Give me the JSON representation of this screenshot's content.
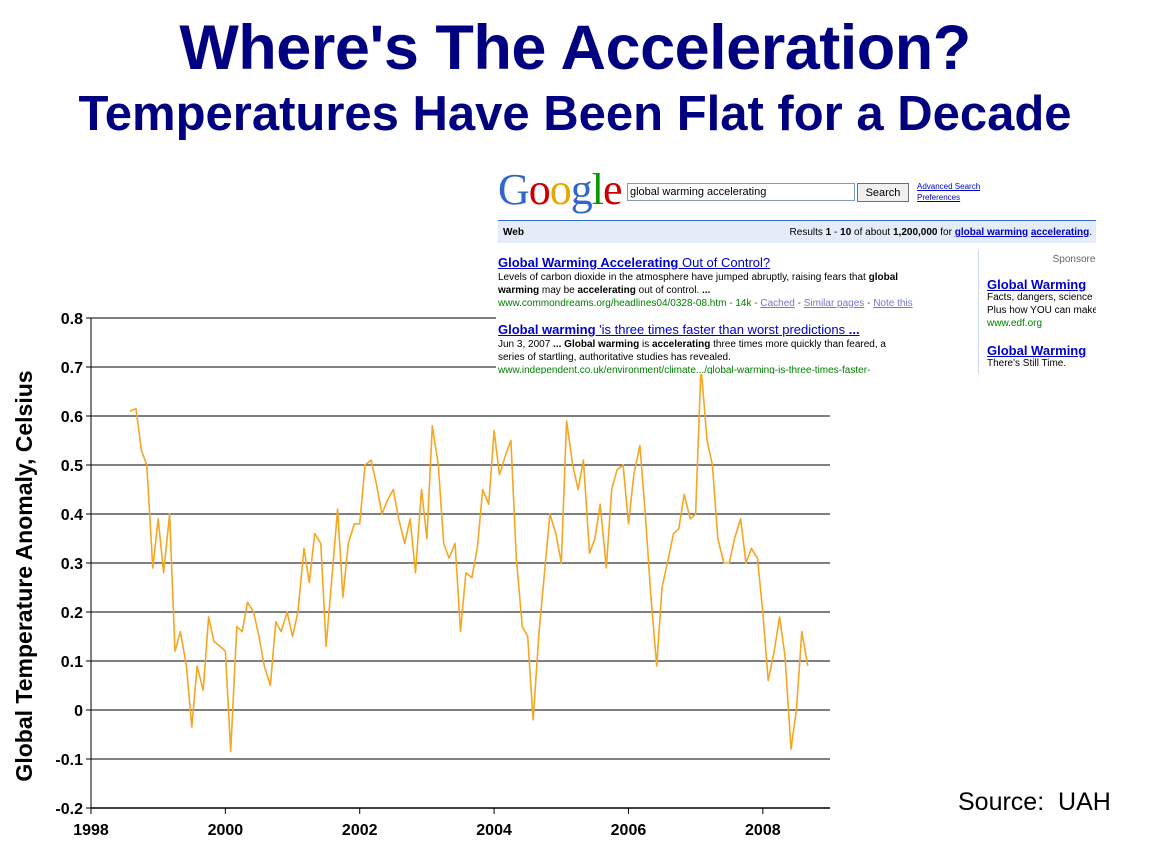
{
  "title": "Where's The Acceleration?",
  "subtitle": "Temperatures Have Been Flat for a Decade",
  "source_label": "Source:  UAH",
  "chart_data": {
    "type": "line",
    "title": "Where's The Acceleration?",
    "subtitle": "Temperatures Have Been Flat for a Decade",
    "ylabel": "Global Temperature Anomaly, Celsius",
    "xlabel": "",
    "xlim": [
      1998,
      2009
    ],
    "ylim": [
      -0.2,
      0.8
    ],
    "x_ticks": [
      "1998",
      "2000",
      "2002",
      "2004",
      "2006",
      "2008"
    ],
    "x_tick_values": [
      1998,
      2000,
      2002,
      2004,
      2006,
      2008
    ],
    "y_ticks": [
      "0.8",
      "0.7",
      "0.6",
      "0.5",
      "0.4",
      "0.3",
      "0.2",
      "0.1",
      "0",
      "-0.1",
      "-0.2"
    ],
    "y_tick_values": [
      0.8,
      0.7,
      0.6,
      0.5,
      0.4,
      0.3,
      0.2,
      0.1,
      0,
      -0.1,
      -0.2
    ],
    "grid": "horizontal",
    "line_color": "#f5a623",
    "series": [
      {
        "x": [
          1998.58,
          1998.67,
          1998.75,
          1998.83,
          1998.92,
          1999.0,
          1999.08,
          1999.17,
          1999.25,
          1999.33,
          1999.42,
          1999.5,
          1999.58,
          1999.67,
          1999.75,
          1999.83,
          1999.92,
          2000.0,
          2000.08,
          2000.17,
          2000.25,
          2000.33,
          2000.42,
          2000.5,
          2000.58,
          2000.67,
          2000.75,
          2000.83,
          2000.92,
          2001.0,
          2001.08,
          2001.17,
          2001.25,
          2001.33,
          2001.42,
          2001.5,
          2001.58,
          2001.67,
          2001.75,
          2001.83,
          2001.92,
          2002.0,
          2002.08,
          2002.17,
          2002.25,
          2002.33,
          2002.42,
          2002.5,
          2002.58,
          2002.67,
          2002.75,
          2002.83,
          2002.92,
          2003.0,
          2003.08,
          2003.17,
          2003.25,
          2003.33,
          2003.42,
          2003.5,
          2003.58,
          2003.67,
          2003.75,
          2003.83,
          2003.92,
          2004.0,
          2004.08,
          2004.17,
          2004.25,
          2004.33,
          2004.42,
          2004.5,
          2004.58,
          2004.67,
          2004.75,
          2004.83,
          2004.92,
          2005.0,
          2005.08,
          2005.17,
          2005.25,
          2005.33,
          2005.42,
          2005.5,
          2005.58,
          2005.67,
          2005.75,
          2005.83,
          2005.92,
          2006.0,
          2006.08,
          2006.17,
          2006.25,
          2006.33,
          2006.42,
          2006.5,
          2006.58,
          2006.67,
          2006.75,
          2006.83,
          2006.92,
          2007.0,
          2007.08,
          2007.17,
          2007.25,
          2007.33,
          2007.42,
          2007.5,
          2007.58,
          2007.67,
          2007.75,
          2007.83,
          2007.92,
          2008.0,
          2008.08,
          2008.17,
          2008.25,
          2008.33,
          2008.42,
          2008.5,
          2008.58,
          2008.67
        ],
        "y": [
          0.61,
          0.615,
          0.53,
          0.5,
          0.29,
          0.39,
          0.28,
          0.4,
          0.12,
          0.16,
          0.09,
          -0.035,
          0.09,
          0.04,
          0.19,
          0.14,
          0.13,
          0.12,
          -0.085,
          0.17,
          0.16,
          0.22,
          0.2,
          0.15,
          0.09,
          0.05,
          0.18,
          0.16,
          0.2,
          0.15,
          0.2,
          0.33,
          0.26,
          0.36,
          0.34,
          0.13,
          0.26,
          0.41,
          0.23,
          0.34,
          0.38,
          0.38,
          0.5,
          0.51,
          0.46,
          0.4,
          0.43,
          0.45,
          0.39,
          0.34,
          0.39,
          0.28,
          0.45,
          0.35,
          0.58,
          0.5,
          0.34,
          0.31,
          0.34,
          0.16,
          0.28,
          0.27,
          0.33,
          0.45,
          0.42,
          0.57,
          0.48,
          0.52,
          0.55,
          0.31,
          0.17,
          0.15,
          -0.02,
          0.16,
          0.28,
          0.4,
          0.36,
          0.3,
          0.59,
          0.5,
          0.45,
          0.51,
          0.32,
          0.35,
          0.42,
          0.29,
          0.45,
          0.49,
          0.5,
          0.38,
          0.48,
          0.54,
          0.4,
          0.24,
          0.09,
          0.25,
          0.3,
          0.36,
          0.37,
          0.44,
          0.39,
          0.4,
          0.7,
          0.55,
          0.5,
          0.35,
          0.3,
          0.3,
          0.35,
          0.39,
          0.3,
          0.33,
          0.31,
          0.2,
          0.06,
          0.12,
          0.19,
          0.11,
          -0.08,
          0.0,
          0.16,
          0.09
        ]
      }
    ]
  },
  "google": {
    "logo_letters": [
      "G",
      "o",
      "o",
      "g",
      "l",
      "e"
    ],
    "logo_colors": [
      "#3366cc",
      "#cc0000",
      "#e6a800",
      "#3366cc",
      "#009900",
      "#cc0000"
    ],
    "search_query": "global warming accelerating",
    "search_button": "Search",
    "advanced_search": "Advanced Search",
    "preferences": "Preferences",
    "web_tab": "Web",
    "results_prefix": "Results",
    "results_range_start": "1",
    "results_dash": "-",
    "results_range_end": "10",
    "results_of_about": "of about",
    "results_total": "1,200,000",
    "results_for": "for",
    "query_word_1": "global warming",
    "query_word_2": "accelerating",
    "results": [
      {
        "title_linked": "Global Warming Accelerating",
        "title_rest": " Out of Control?",
        "snippet_1": "Levels of carbon dioxide in the atmosphere have jumped abruptly, raising fears that ",
        "snippet_1b": "global",
        "snippet_2a": "warming",
        "snippet_2b": " may be ",
        "snippet_2c": "accelerating",
        "snippet_2d": " out of control. ",
        "snippet_2e": "...",
        "url": "www.commondreams.org/headlines04/0328-08.htm - 14k - ",
        "cached": "Cached",
        "sep": " - ",
        "similar": "Similar pages",
        "note": "Note this"
      },
      {
        "title_linked": "Global warming",
        "title_rest": " 'is three times faster than worst predictions ",
        "title_ellipsis": "...",
        "snippet_date": "Jun 3, 2007 ",
        "snippet_1": "...",
        "snippet_1b": " Global warming",
        "snippet_1c": " is ",
        "snippet_1d": "accelerating",
        "snippet_1e": " three times more quickly than feared, a",
        "snippet_2": "series of startling, authoritative studies has revealed.",
        "url": "www.independent.co.uk/environment/climate.../global-warming-is-three-times-faster-"
      }
    ],
    "sponsored_label": "Sponsored",
    "ads": [
      {
        "title": "Global Warming",
        "line1": "Facts, dangers, science",
        "line2": "Plus how YOU can make",
        "url": "www.edf.org"
      },
      {
        "title": "Global Warming",
        "line1": "There's Still Time."
      }
    ]
  }
}
